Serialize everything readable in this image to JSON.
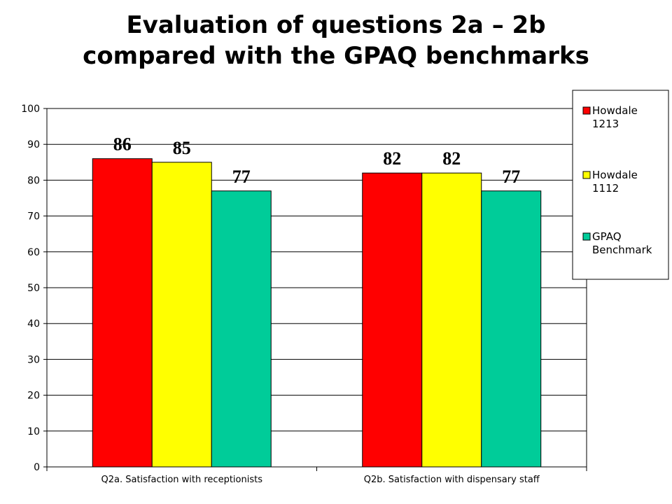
{
  "chart_data": {
    "type": "bar",
    "title_lines": [
      "Evaluation of questions 2a – 2b",
      "compared with the GPAQ benchmarks"
    ],
    "categories": [
      "Q2a. Satisfaction with receptionists",
      "Q2b. Satisfaction with dispensary staff"
    ],
    "series": [
      {
        "name_lines": [
          "Howdale",
          "1213"
        ],
        "color": "#ff0000",
        "values": [
          86,
          82
        ]
      },
      {
        "name_lines": [
          "Howdale",
          "1112"
        ],
        "color": "#ffff00",
        "values": [
          85,
          82
        ]
      },
      {
        "name_lines": [
          "GPAQ",
          "Benchmark"
        ],
        "color": "#00cc99",
        "values": [
          77,
          77
        ]
      }
    ],
    "ylim": [
      0,
      100
    ],
    "yticks": [
      0,
      10,
      20,
      30,
      40,
      50,
      60,
      70,
      80,
      90,
      100
    ],
    "grid": true,
    "legend_position": "right",
    "data_labels": true
  }
}
